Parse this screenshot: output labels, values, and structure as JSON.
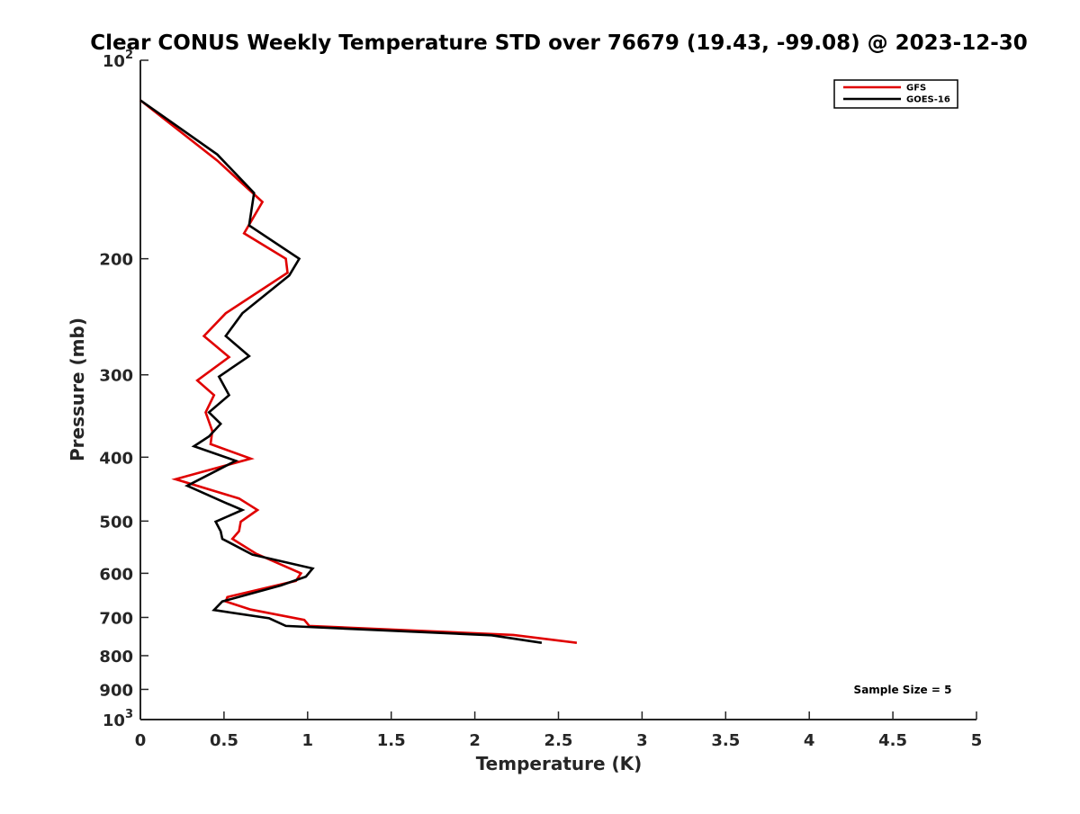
{
  "chart_data": {
    "type": "line",
    "title": "Clear CONUS Weekly Temperature STD over 76679 (19.43, -99.08) @ 2023-12-30",
    "xlabel": "Temperature (K)",
    "ylabel": "Pressure (mb)",
    "xlim": [
      0,
      5
    ],
    "ylim": [
      100,
      1000
    ],
    "y_scale": "log",
    "y_reversed": true,
    "x_ticks": [
      "0",
      "0.5",
      "1",
      "1.5",
      "2",
      "2.5",
      "3",
      "3.5",
      "4",
      "4.5",
      "5"
    ],
    "y_ticks": [
      {
        "value": 100,
        "base": "10",
        "exp": "2"
      },
      {
        "value": 200,
        "label": "200"
      },
      {
        "value": 300,
        "label": "300"
      },
      {
        "value": 400,
        "label": "400"
      },
      {
        "value": 500,
        "label": "500"
      },
      {
        "value": 600,
        "label": "600"
      },
      {
        "value": 700,
        "label": "700"
      },
      {
        "value": 800,
        "label": "800"
      },
      {
        "value": 900,
        "label": "900"
      },
      {
        "value": 1000,
        "base": "10",
        "exp": "3"
      }
    ],
    "grid": false,
    "legend_position": "top-right",
    "series": [
      {
        "name": "GFS",
        "color": "#e00000",
        "points": [
          [
            0.0,
            115
          ],
          [
            0.46,
            142
          ],
          [
            0.73,
            164
          ],
          [
            0.62,
            183
          ],
          [
            0.87,
            200
          ],
          [
            0.88,
            210
          ],
          [
            0.51,
            242
          ],
          [
            0.38,
            262
          ],
          [
            0.53,
            282
          ],
          [
            0.34,
            306
          ],
          [
            0.44,
            322
          ],
          [
            0.39,
            342
          ],
          [
            0.43,
            365
          ],
          [
            0.42,
            382
          ],
          [
            0.66,
            402
          ],
          [
            0.21,
            432
          ],
          [
            0.59,
            462
          ],
          [
            0.7,
            481
          ],
          [
            0.6,
            501
          ],
          [
            0.59,
            518
          ],
          [
            0.55,
            532
          ],
          [
            0.69,
            560
          ],
          [
            0.96,
            600
          ],
          [
            0.93,
            616
          ],
          [
            0.52,
            652
          ],
          [
            0.51,
            662
          ],
          [
            0.66,
            681
          ],
          [
            0.98,
            706
          ],
          [
            1.01,
            721
          ],
          [
            2.23,
            744
          ],
          [
            2.61,
            765
          ]
        ]
      },
      {
        "name": "GOES-16",
        "color": "#000000",
        "points": [
          [
            0.0,
            115
          ],
          [
            0.46,
            139
          ],
          [
            0.68,
            159
          ],
          [
            0.65,
            178
          ],
          [
            0.95,
            200
          ],
          [
            0.89,
            212
          ],
          [
            0.61,
            242
          ],
          [
            0.51,
            262
          ],
          [
            0.65,
            281
          ],
          [
            0.47,
            302
          ],
          [
            0.53,
            322
          ],
          [
            0.41,
            342
          ],
          [
            0.48,
            356
          ],
          [
            0.41,
            372
          ],
          [
            0.32,
            385
          ],
          [
            0.57,
            405
          ],
          [
            0.28,
            442
          ],
          [
            0.5,
            468
          ],
          [
            0.61,
            481
          ],
          [
            0.45,
            501
          ],
          [
            0.48,
            518
          ],
          [
            0.49,
            532
          ],
          [
            0.67,
            562
          ],
          [
            1.03,
            590
          ],
          [
            0.99,
            607
          ],
          [
            0.84,
            626
          ],
          [
            0.49,
            662
          ],
          [
            0.44,
            682
          ],
          [
            0.77,
            702
          ],
          [
            0.87,
            721
          ],
          [
            2.1,
            745
          ],
          [
            2.4,
            765
          ]
        ]
      }
    ],
    "annotation": "Sample Size = 5"
  }
}
